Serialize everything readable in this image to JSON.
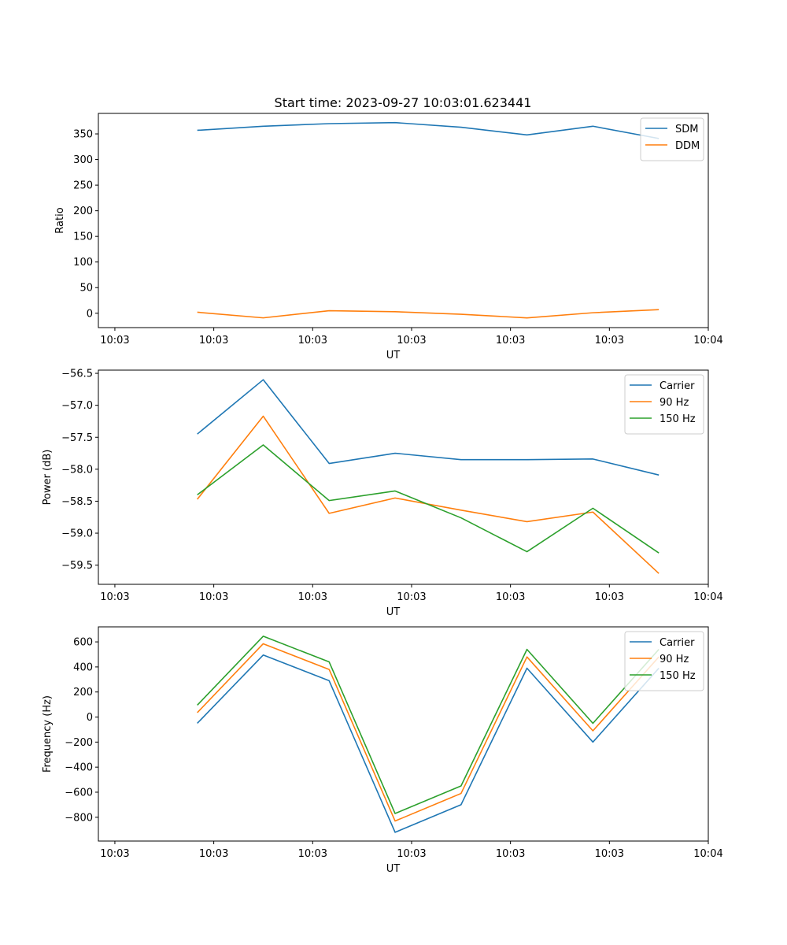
{
  "figure_title": "Start time: 2023-09-27 10:03:01.623441",
  "chart_data": [
    {
      "type": "line",
      "title": "Start time: 2023-09-27 10:03:01.623441",
      "xlabel": "UT",
      "ylabel": "Ratio",
      "x": [
        1.0,
        1.8,
        2.6,
        3.4,
        4.2,
        5.0,
        5.8,
        6.6
      ],
      "xlim": [
        -0.2,
        7.2
      ],
      "xticks": [
        0,
        1.2,
        2.4,
        3.6,
        4.8,
        6.0,
        7.2
      ],
      "xtick_labels": [
        "10:03",
        "10:03",
        "10:03",
        "10:03",
        "10:03",
        "10:03",
        "10:04"
      ],
      "ylim": [
        -28,
        390
      ],
      "yticks": [
        0,
        50,
        100,
        150,
        200,
        250,
        300,
        350
      ],
      "ytick_labels": [
        "0",
        "50",
        "100",
        "150",
        "200",
        "250",
        "300",
        "350"
      ],
      "legend_position": "top-right",
      "series": [
        {
          "name": "SDM",
          "color": "#1f77b4",
          "values": [
            357,
            365,
            370,
            372,
            363,
            348,
            365,
            341
          ]
        },
        {
          "name": "DDM",
          "color": "#ff7f0e",
          "values": [
            2,
            -9,
            5,
            3,
            -2,
            -9,
            1,
            7
          ]
        }
      ]
    },
    {
      "type": "line",
      "xlabel": "UT",
      "ylabel": "Power (dB)",
      "x": [
        1.0,
        1.8,
        2.6,
        3.4,
        4.2,
        5.0,
        5.8,
        6.6
      ],
      "xlim": [
        -0.2,
        7.2
      ],
      "xticks": [
        0,
        1.2,
        2.4,
        3.6,
        4.8,
        6.0,
        7.2
      ],
      "xtick_labels": [
        "10:03",
        "10:03",
        "10:03",
        "10:03",
        "10:03",
        "10:03",
        "10:04"
      ],
      "ylim": [
        -59.8,
        -56.45
      ],
      "yticks": [
        -56.5,
        -57.0,
        -57.5,
        -58.0,
        -58.5,
        -59.0,
        -59.5
      ],
      "ytick_labels": [
        "−56.5",
        "−57.0",
        "−57.5",
        "−58.0",
        "−58.5",
        "−59.0",
        "−59.5"
      ],
      "legend_position": "top-right",
      "series": [
        {
          "name": "Carrier",
          "color": "#1f77b4",
          "values": [
            -57.45,
            -56.6,
            -57.91,
            -57.75,
            -57.85,
            -57.85,
            -57.84,
            -58.09
          ]
        },
        {
          "name": "90 Hz",
          "color": "#ff7f0e",
          "values": [
            -58.47,
            -57.17,
            -58.69,
            -58.45,
            -58.64,
            -58.82,
            -58.67,
            -59.63
          ]
        },
        {
          "name": "150 Hz",
          "color": "#2ca02c",
          "values": [
            -58.4,
            -57.62,
            -58.49,
            -58.34,
            -58.76,
            -59.29,
            -58.61,
            -59.31
          ]
        }
      ]
    },
    {
      "type": "line",
      "xlabel": "UT",
      "ylabel": "Frequency (Hz)",
      "x": [
        1.0,
        1.8,
        2.6,
        3.4,
        4.2,
        5.0,
        5.8,
        6.6
      ],
      "xlim": [
        -0.2,
        7.2
      ],
      "xticks": [
        0,
        1.2,
        2.4,
        3.6,
        4.8,
        6.0,
        7.2
      ],
      "xtick_labels": [
        "10:03",
        "10:03",
        "10:03",
        "10:03",
        "10:03",
        "10:03",
        "10:04"
      ],
      "ylim": [
        -990,
        720
      ],
      "yticks": [
        600,
        400,
        200,
        0,
        -200,
        -400,
        -600,
        -800
      ],
      "ytick_labels": [
        "600",
        "400",
        "200",
        "0",
        "−200",
        "−400",
        "−600",
        "−800"
      ],
      "legend_position": "top-right",
      "series": [
        {
          "name": "Carrier",
          "color": "#1f77b4",
          "values": [
            -50,
            495,
            290,
            -920,
            -700,
            390,
            -200,
            390
          ]
        },
        {
          "name": "90 Hz",
          "color": "#ff7f0e",
          "values": [
            35,
            585,
            380,
            -830,
            -610,
            480,
            -110,
            480
          ]
        },
        {
          "name": "150 Hz",
          "color": "#2ca02c",
          "values": [
            95,
            645,
            440,
            -770,
            -550,
            540,
            -50,
            540
          ]
        }
      ]
    }
  ]
}
